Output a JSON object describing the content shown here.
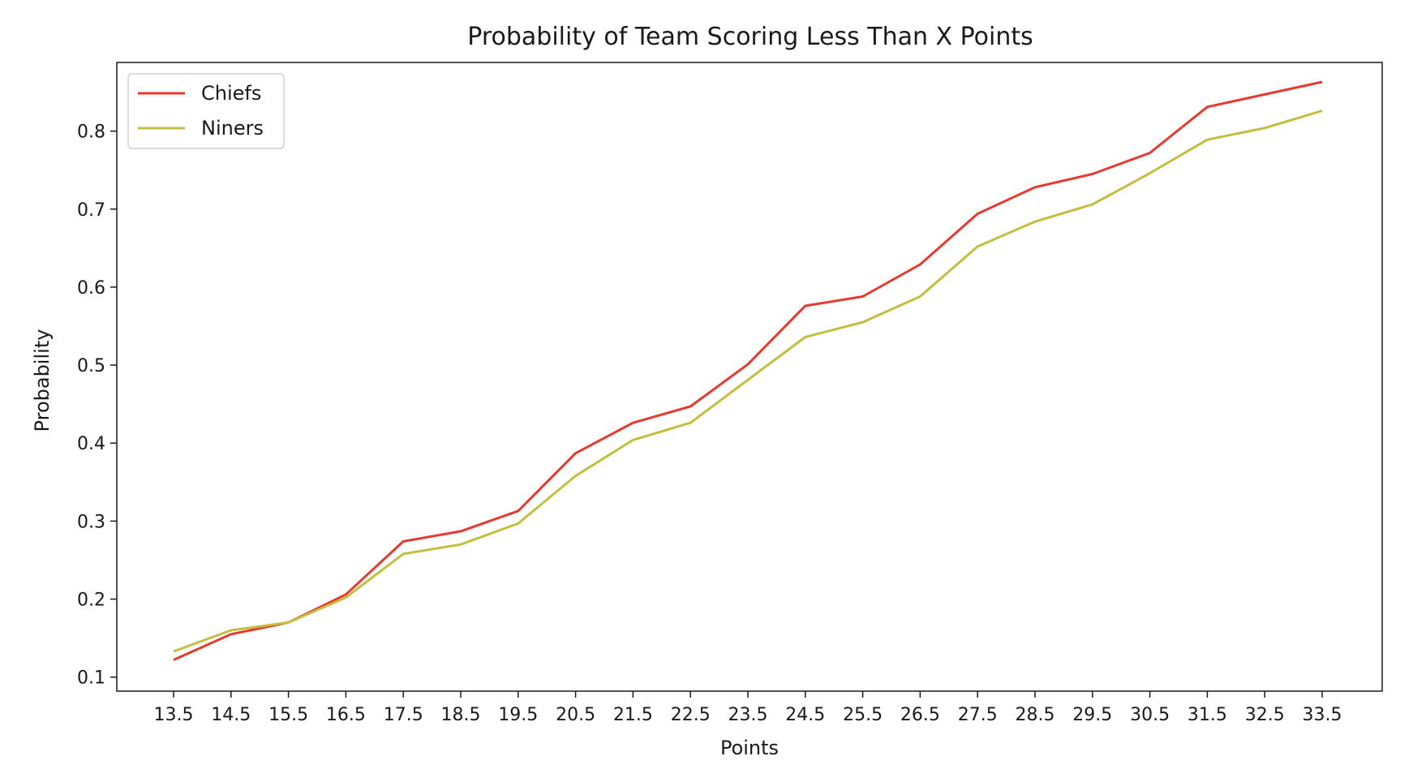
{
  "chart_data": {
    "type": "line",
    "title": "Probability of Team Scoring Less Than X Points",
    "xlabel": "Points",
    "ylabel": "Probability",
    "x": [
      "13.5",
      "14.5",
      "15.5",
      "16.5",
      "17.5",
      "18.5",
      "19.5",
      "20.5",
      "21.5",
      "22.5",
      "23.5",
      "24.5",
      "25.5",
      "26.5",
      "27.5",
      "28.5",
      "29.5",
      "30.5",
      "31.5",
      "32.5",
      "33.5"
    ],
    "ylim": [
      0.082,
      0.888
    ],
    "yticks": [
      "0.1",
      "0.2",
      "0.3",
      "0.4",
      "0.5",
      "0.6",
      "0.7",
      "0.8"
    ],
    "grid": false,
    "legend_position": "top-left",
    "series": [
      {
        "name": "Chiefs",
        "color": "#e8392f",
        "values": [
          0.122,
          0.155,
          0.17,
          0.206,
          0.274,
          0.287,
          0.313,
          0.387,
          0.426,
          0.447,
          0.501,
          0.576,
          0.588,
          0.629,
          0.694,
          0.728,
          0.745,
          0.772,
          0.831,
          0.847,
          0.863
        ]
      },
      {
        "name": "Niners",
        "color": "#c2bf3e",
        "values": [
          0.133,
          0.16,
          0.17,
          0.202,
          0.258,
          0.27,
          0.297,
          0.358,
          0.404,
          0.426,
          0.481,
          0.536,
          0.555,
          0.588,
          0.652,
          0.684,
          0.706,
          0.746,
          0.789,
          0.804,
          0.826
        ]
      }
    ]
  }
}
